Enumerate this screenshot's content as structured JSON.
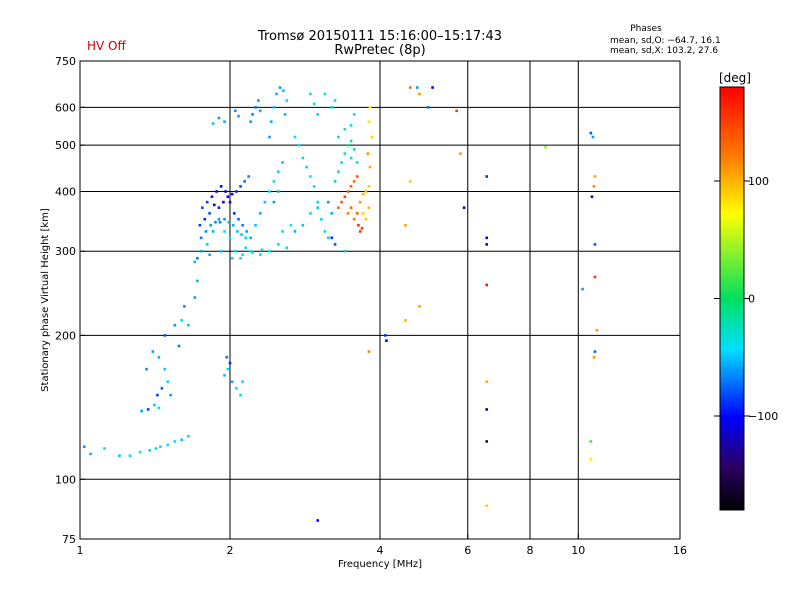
{
  "header": {
    "hv_status": "HV Off",
    "title_line1": "Tromsø 20150111 15:16:00–15:17:43",
    "title_line2": "RwPretec (8p)",
    "phases_title": "Phases",
    "phases_o": "mean, sd,O: −64.7, 16.1",
    "phases_x": "mean, sd,X: 103.2, 27.6"
  },
  "colorbar": {
    "label": "[deg]",
    "range": [
      -180,
      180
    ],
    "ticks": [
      {
        "value": 100,
        "label": "100"
      },
      {
        "value": 0,
        "label": "0"
      },
      {
        "value": -100,
        "label": "−100"
      }
    ]
  },
  "chart_data": {
    "type": "scatter",
    "title": "Tromsø 20150111 15:16:00–15:17:43",
    "subtitle": "RwPretec (8p)",
    "xlabel": "Frequency [MHz]",
    "ylabel": "Stationary phase Virtual Height [km]",
    "xscale": "log",
    "yscale": "log",
    "xlim": [
      1,
      16
    ],
    "ylim": [
      75,
      750
    ],
    "x_ticks": [
      {
        "value": 1,
        "label": "1"
      },
      {
        "value": 2,
        "label": "2"
      },
      {
        "value": 4,
        "label": "4"
      },
      {
        "value": 6,
        "label": "6"
      },
      {
        "value": 8,
        "label": "8"
      },
      {
        "value": 10,
        "label": "10"
      },
      {
        "value": 16,
        "label": "16"
      }
    ],
    "y_ticks": [
      {
        "value": 75,
        "label": "75"
      },
      {
        "value": 100,
        "label": "100"
      },
      {
        "value": 200,
        "label": "200"
      },
      {
        "value": 300,
        "label": "300"
      },
      {
        "value": 400,
        "label": "400"
      },
      {
        "value": 500,
        "label": "500"
      },
      {
        "value": 600,
        "label": "600"
      },
      {
        "value": 750,
        "label": "750"
      }
    ],
    "x_grid": [
      2,
      4,
      6,
      8,
      10
    ],
    "y_grid": [
      100,
      200,
      300,
      400,
      500,
      600
    ],
    "color_variable": "phase [deg]",
    "series": [
      {
        "name": "low trace",
        "points": [
          [
            1.02,
            117,
            -60
          ],
          [
            1.05,
            113,
            -55
          ],
          [
            1.12,
            116,
            -40
          ],
          [
            1.2,
            112,
            -50
          ],
          [
            1.26,
            112,
            -45
          ],
          [
            1.32,
            114,
            -40
          ],
          [
            1.38,
            115,
            -30
          ],
          [
            1.42,
            116,
            -25
          ],
          [
            1.45,
            117,
            -40
          ],
          [
            1.5,
            118,
            -45
          ],
          [
            1.55,
            120,
            -35
          ],
          [
            1.6,
            121,
            -50
          ],
          [
            1.65,
            123,
            -40
          ],
          [
            1.33,
            139,
            -60
          ],
          [
            1.37,
            140,
            -85
          ],
          [
            1.41,
            143,
            -50
          ],
          [
            1.44,
            141,
            -30
          ]
        ]
      },
      {
        "name": "lower E/F rising",
        "points": [
          [
            1.36,
            170,
            -65
          ],
          [
            1.4,
            185,
            -60
          ],
          [
            1.44,
            180,
            -55
          ],
          [
            1.48,
            170,
            -50
          ],
          [
            1.5,
            160,
            -40
          ],
          [
            1.52,
            150,
            -60
          ],
          [
            1.46,
            155,
            -75
          ],
          [
            1.43,
            150,
            -85
          ],
          [
            1.48,
            200,
            -80
          ],
          [
            1.55,
            210,
            -60
          ],
          [
            1.6,
            215,
            -40
          ],
          [
            1.65,
            210,
            -50
          ],
          [
            1.7,
            240,
            -60
          ],
          [
            1.72,
            260,
            -55
          ],
          [
            1.58,
            190,
            -70
          ],
          [
            1.62,
            230,
            -65
          ],
          [
            1.95,
            165,
            -50
          ],
          [
            1.98,
            170,
            -45
          ],
          [
            2.02,
            160,
            -55
          ],
          [
            2.06,
            155,
            -40
          ],
          [
            2.1,
            150,
            -45
          ],
          [
            2.12,
            160,
            -35
          ],
          [
            2.0,
            175,
            -90
          ],
          [
            1.97,
            180,
            -70
          ]
        ]
      },
      {
        "name": "F layer dense",
        "points": [
          [
            1.7,
            285,
            -55
          ],
          [
            1.75,
            300,
            -60
          ],
          [
            1.8,
            310,
            -50
          ],
          [
            1.85,
            330,
            -55
          ],
          [
            1.9,
            350,
            -60
          ],
          [
            1.95,
            330,
            -45
          ],
          [
            2.0,
            320,
            -40
          ],
          [
            2.05,
            300,
            -35
          ],
          [
            2.1,
            290,
            -40
          ],
          [
            2.15,
            305,
            -45
          ],
          [
            2.2,
            300,
            -40
          ],
          [
            2.3,
            295,
            -35
          ],
          [
            2.4,
            300,
            -40
          ],
          [
            2.5,
            310,
            -35
          ],
          [
            2.6,
            305,
            -30
          ],
          [
            1.72,
            290,
            -70
          ],
          [
            1.82,
            295,
            -55
          ],
          [
            1.92,
            300,
            -50
          ],
          [
            2.02,
            290,
            -45
          ],
          [
            2.12,
            295,
            -40
          ],
          [
            2.22,
            298,
            -35
          ],
          [
            2.32,
            302,
            -30
          ],
          [
            1.74,
            340,
            -85
          ],
          [
            1.78,
            350,
            -90
          ],
          [
            1.82,
            360,
            -80
          ],
          [
            1.86,
            375,
            -100
          ],
          [
            1.9,
            370,
            -95
          ],
          [
            1.94,
            380,
            -110
          ],
          [
            1.98,
            390,
            -105
          ],
          [
            2.02,
            395,
            -100
          ],
          [
            2.06,
            400,
            -90
          ],
          [
            2.1,
            410,
            -80
          ],
          [
            2.14,
            420,
            -70
          ],
          [
            2.18,
            430,
            -65
          ],
          [
            1.76,
            370,
            -80
          ],
          [
            1.8,
            380,
            -85
          ],
          [
            1.84,
            390,
            -95
          ],
          [
            1.88,
            400,
            -100
          ],
          [
            1.92,
            410,
            -105
          ],
          [
            1.96,
            400,
            -110
          ],
          [
            2.0,
            380,
            -100
          ],
          [
            2.04,
            360,
            -90
          ],
          [
            2.08,
            350,
            -75
          ],
          [
            2.12,
            340,
            -70
          ],
          [
            2.16,
            330,
            -60
          ],
          [
            2.2,
            320,
            -55
          ],
          [
            1.75,
            320,
            -70
          ],
          [
            1.79,
            330,
            -65
          ],
          [
            1.83,
            340,
            -60
          ],
          [
            1.87,
            345,
            -65
          ],
          [
            1.91,
            345,
            -70
          ],
          [
            1.95,
            350,
            -65
          ],
          [
            1.99,
            345,
            -60
          ],
          [
            2.03,
            340,
            -55
          ],
          [
            2.07,
            330,
            -50
          ],
          [
            2.11,
            325,
            -50
          ],
          [
            2.15,
            320,
            -45
          ],
          [
            2.25,
            340,
            -50
          ],
          [
            2.3,
            360,
            -55
          ],
          [
            2.35,
            380,
            -50
          ],
          [
            2.4,
            400,
            -45
          ],
          [
            2.45,
            420,
            -40
          ],
          [
            2.5,
            440,
            -45
          ],
          [
            2.55,
            460,
            -50
          ],
          [
            2.4,
            520,
            -60
          ],
          [
            2.42,
            560,
            -55
          ],
          [
            2.45,
            600,
            -50
          ],
          [
            2.48,
            640,
            -55
          ],
          [
            2.52,
            660,
            -60
          ],
          [
            2.56,
            650,
            -50
          ],
          [
            2.6,
            620,
            -45
          ],
          [
            2.58,
            580,
            -55
          ],
          [
            2.2,
            560,
            -60
          ],
          [
            2.22,
            580,
            -65
          ],
          [
            2.25,
            600,
            -70
          ],
          [
            2.28,
            620,
            -60
          ],
          [
            2.3,
            590,
            -55
          ],
          [
            2.05,
            590,
            -65
          ],
          [
            2.08,
            575,
            -60
          ],
          [
            1.95,
            560,
            -55
          ],
          [
            1.9,
            570,
            -60
          ],
          [
            1.85,
            555,
            -50
          ],
          [
            2.7,
            520,
            -45
          ],
          [
            2.75,
            500,
            -40
          ],
          [
            2.8,
            470,
            -35
          ],
          [
            2.85,
            450,
            -30
          ],
          [
            2.9,
            430,
            -40
          ],
          [
            2.95,
            410,
            -35
          ],
          [
            3.0,
            380,
            -30
          ],
          [
            3.05,
            350,
            -35
          ],
          [
            3.1,
            330,
            -30
          ],
          [
            3.15,
            320,
            -25
          ],
          [
            2.9,
            640,
            -40
          ],
          [
            2.95,
            610,
            -45
          ],
          [
            3.0,
            580,
            -40
          ],
          [
            3.1,
            640,
            -35
          ],
          [
            3.2,
            600,
            -30
          ],
          [
            3.25,
            620,
            -40
          ],
          [
            2.7,
            330,
            -55
          ],
          [
            2.8,
            340,
            -50
          ],
          [
            2.9,
            360,
            -45
          ],
          [
            3.0,
            370,
            -50
          ],
          [
            3.15,
            380,
            -60
          ],
          [
            3.2,
            360,
            -55
          ],
          [
            2.55,
            330,
            -45
          ],
          [
            2.65,
            340,
            -40
          ],
          [
            2.45,
            380,
            -60
          ],
          [
            2.5,
            400,
            -55
          ]
        ]
      },
      {
        "name": "X trace",
        "points": [
          [
            3.25,
            420,
            -20
          ],
          [
            3.3,
            440,
            -25
          ],
          [
            3.35,
            460,
            -30
          ],
          [
            3.4,
            480,
            -25
          ],
          [
            3.45,
            500,
            -20
          ],
          [
            3.5,
            470,
            -30
          ],
          [
            3.55,
            490,
            -25
          ],
          [
            3.6,
            460,
            -35
          ],
          [
            3.3,
            520,
            -30
          ],
          [
            3.4,
            540,
            -25
          ],
          [
            3.5,
            510,
            -20
          ],
          [
            3.3,
            370,
            130
          ],
          [
            3.35,
            380,
            140
          ],
          [
            3.4,
            390,
            150
          ],
          [
            3.45,
            400,
            140
          ],
          [
            3.5,
            410,
            135
          ],
          [
            3.55,
            420,
            130
          ],
          [
            3.6,
            430,
            145
          ],
          [
            3.45,
            360,
            120
          ],
          [
            3.5,
            370,
            130
          ],
          [
            3.55,
            350,
            125
          ],
          [
            3.6,
            360,
            135
          ],
          [
            3.65,
            380,
            110
          ],
          [
            3.7,
            395,
            100
          ],
          [
            3.75,
            400,
            95
          ],
          [
            3.8,
            410,
            90
          ],
          [
            3.7,
            360,
            90
          ],
          [
            3.75,
            350,
            95
          ],
          [
            3.8,
            370,
            100
          ],
          [
            3.62,
            340,
            160
          ],
          [
            3.65,
            330,
            155
          ],
          [
            3.68,
            335,
            150
          ],
          [
            3.8,
            560,
            80
          ],
          [
            3.82,
            600,
            75
          ],
          [
            3.85,
            520,
            85
          ],
          [
            3.78,
            480,
            110
          ],
          [
            3.82,
            450,
            105
          ],
          [
            3.5,
            550,
            -30
          ],
          [
            3.55,
            580,
            -35
          ],
          [
            3.4,
            300,
            -50
          ],
          [
            3.25,
            310,
            -80
          ],
          [
            3.2,
            320,
            -90
          ]
        ]
      },
      {
        "name": "scattered high freq",
        "points": [
          [
            4.1,
            200,
            -90
          ],
          [
            4.12,
            195,
            -100
          ],
          [
            3.8,
            185,
            120
          ],
          [
            4.5,
            215,
            100
          ],
          [
            4.8,
            230,
            105
          ],
          [
            4.75,
            660,
            -60
          ],
          [
            4.6,
            660,
            130
          ],
          [
            4.8,
            640,
            110
          ],
          [
            5.0,
            600,
            -70
          ],
          [
            5.1,
            660,
            -100
          ],
          [
            5.7,
            590,
            150
          ],
          [
            5.8,
            480,
            110
          ],
          [
            5.9,
            370,
            -110
          ],
          [
            4.6,
            420,
            90
          ],
          [
            4.5,
            340,
            110
          ],
          [
            6.55,
            430,
            -90
          ],
          [
            6.55,
            320,
            -110
          ],
          [
            6.55,
            310,
            -105
          ],
          [
            6.55,
            255,
            170
          ],
          [
            6.55,
            160,
            100
          ],
          [
            6.55,
            140,
            -130
          ],
          [
            6.55,
            120,
            -140
          ],
          [
            6.55,
            88,
            90
          ],
          [
            8.6,
            495,
            40
          ],
          [
            10.6,
            530,
            -80
          ],
          [
            10.7,
            520,
            -60
          ],
          [
            10.8,
            430,
            105
          ],
          [
            10.75,
            410,
            115
          ],
          [
            10.65,
            390,
            -120
          ],
          [
            10.8,
            310,
            -80
          ],
          [
            10.8,
            265,
            160
          ],
          [
            10.9,
            205,
            110
          ],
          [
            10.8,
            185,
            -75
          ],
          [
            10.75,
            180,
            110
          ],
          [
            10.6,
            120,
            20
          ],
          [
            10.6,
            110,
            80
          ],
          [
            10.2,
            250,
            -60
          ],
          [
            3.0,
            82,
            -110
          ]
        ]
      }
    ]
  }
}
